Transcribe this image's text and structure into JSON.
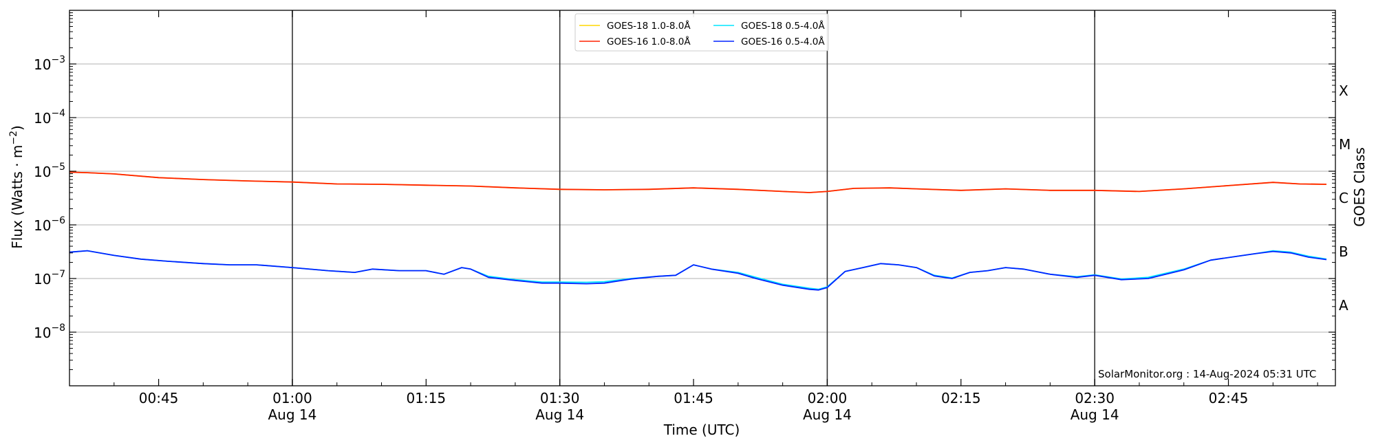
{
  "chart_data": {
    "type": "line",
    "title": "",
    "xlabel": "Time (UTC)",
    "ylabel": "Flux (Watts · m",
    "ylabel_sup": "−2",
    "ylabel_close": ")",
    "right_axis_label": "GOES Class",
    "y_scale": "log",
    "ylim": [
      1e-09,
      0.01
    ],
    "xlim": [
      "00:35",
      "02:57"
    ],
    "grid": "horizontal at major decades",
    "legend_position": "top-center",
    "y_ticks": [
      {
        "value": -8,
        "base": "10",
        "exp": "−8"
      },
      {
        "value": -7,
        "base": "10",
        "exp": "−7"
      },
      {
        "value": -6,
        "base": "10",
        "exp": "−6"
      },
      {
        "value": -5,
        "base": "10",
        "exp": "−5"
      },
      {
        "value": -4,
        "base": "10",
        "exp": "−4"
      },
      {
        "value": -3,
        "base": "10",
        "exp": "−3"
      }
    ],
    "x_ticks": [
      {
        "time": "00:45",
        "label": "00:45",
        "sub": ""
      },
      {
        "time": "01:00",
        "label": "01:00",
        "sub": "Aug 14"
      },
      {
        "time": "01:15",
        "label": "01:15",
        "sub": ""
      },
      {
        "time": "01:30",
        "label": "01:30",
        "sub": "Aug 14"
      },
      {
        "time": "01:45",
        "label": "01:45",
        "sub": ""
      },
      {
        "time": "02:00",
        "label": "02:00",
        "sub": "Aug 14"
      },
      {
        "time": "02:15",
        "label": "02:15",
        "sub": ""
      },
      {
        "time": "02:30",
        "label": "02:30",
        "sub": "Aug 14"
      },
      {
        "time": "02:45",
        "label": "02:45",
        "sub": ""
      }
    ],
    "vertical_lines": [
      "01:00",
      "01:30",
      "02:00",
      "02:30"
    ],
    "goes_classes": [
      {
        "label": "A",
        "log_flux": -7.5
      },
      {
        "label": "B",
        "log_flux": -6.5
      },
      {
        "label": "C",
        "log_flux": -5.5
      },
      {
        "label": "M",
        "log_flux": -4.5
      },
      {
        "label": "X",
        "log_flux": -3.5
      }
    ],
    "legend": [
      {
        "name": "GOES-18 1.0-8.0Å",
        "color": "#FFD700"
      },
      {
        "name": "GOES-18 0.5-4.0Å",
        "color": "#00E5FF"
      },
      {
        "name": "GOES-16 1.0-8.0Å",
        "color": "#FF2200"
      },
      {
        "name": "GOES-16 0.5-4.0Å",
        "color": "#0022FF"
      }
    ],
    "series": [
      {
        "name": "GOES-18 1.0-8.0Å",
        "color": "#FFD700",
        "x": [
          "00:35",
          "00:37",
          "00:40",
          "00:45",
          "00:50",
          "00:55",
          "01:00",
          "01:05",
          "01:10",
          "01:15",
          "01:20",
          "01:25",
          "01:30",
          "01:35",
          "01:40",
          "01:45",
          "01:50",
          "01:55",
          "01:58",
          "02:00",
          "02:03",
          "02:07",
          "02:10",
          "02:15",
          "02:20",
          "02:25",
          "02:30",
          "02:35",
          "02:40",
          "02:45",
          "02:50",
          "02:53",
          "02:56"
        ],
        "values": [
          9.6e-06,
          9.4e-06,
          8.9e-06,
          7.6e-06,
          7e-06,
          6.6e-06,
          6.3e-06,
          5.8e-06,
          5.7e-06,
          5.5e-06,
          5.3e-06,
          4.9e-06,
          4.6e-06,
          4.5e-06,
          4.6e-06,
          4.9e-06,
          4.6e-06,
          4.2e-06,
          4e-06,
          4.2e-06,
          4.8e-06,
          4.9e-06,
          4.7e-06,
          4.4e-06,
          4.7e-06,
          4.4e-06,
          4.4e-06,
          4.2e-06,
          4.7e-06,
          5.4e-06,
          6.2e-06,
          5.8e-06,
          5.7e-06
        ]
      },
      {
        "name": "GOES-16 1.0-8.0Å",
        "color": "#FF2200",
        "x": [
          "00:35",
          "00:37",
          "00:40",
          "00:45",
          "00:50",
          "00:55",
          "01:00",
          "01:05",
          "01:10",
          "01:15",
          "01:20",
          "01:25",
          "01:30",
          "01:35",
          "01:40",
          "01:45",
          "01:50",
          "01:55",
          "01:58",
          "02:00",
          "02:03",
          "02:07",
          "02:10",
          "02:15",
          "02:20",
          "02:25",
          "02:30",
          "02:35",
          "02:40",
          "02:45",
          "02:50",
          "02:53",
          "02:56"
        ],
        "values": [
          9.6e-06,
          9.4e-06,
          8.9e-06,
          7.6e-06,
          7e-06,
          6.6e-06,
          6.3e-06,
          5.8e-06,
          5.7e-06,
          5.5e-06,
          5.3e-06,
          4.9e-06,
          4.6e-06,
          4.5e-06,
          4.6e-06,
          4.9e-06,
          4.6e-06,
          4.2e-06,
          4e-06,
          4.2e-06,
          4.8e-06,
          4.9e-06,
          4.7e-06,
          4.4e-06,
          4.7e-06,
          4.4e-06,
          4.4e-06,
          4.2e-06,
          4.7e-06,
          5.4e-06,
          6.2e-06,
          5.8e-06,
          5.7e-06
        ]
      },
      {
        "name": "GOES-18 0.5-4.0Å",
        "color": "#00E5FF",
        "x": [
          "00:35",
          "00:37",
          "00:40",
          "00:43",
          "00:46",
          "00:50",
          "00:53",
          "00:56",
          "01:00",
          "01:04",
          "01:07",
          "01:09",
          "01:12",
          "01:15",
          "01:17",
          "01:19",
          "01:20",
          "01:22",
          "01:25",
          "01:28",
          "01:30",
          "01:33",
          "01:35",
          "01:38",
          "01:41",
          "01:43",
          "01:45",
          "01:47",
          "01:50",
          "01:52",
          "01:55",
          "01:58",
          "01:59",
          "02:00",
          "02:02",
          "02:04",
          "02:06",
          "02:08",
          "02:10",
          "02:12",
          "02:14",
          "02:16",
          "02:18",
          "02:20",
          "02:22",
          "02:25",
          "02:28",
          "02:30",
          "02:33",
          "02:36",
          "02:40",
          "02:43",
          "02:46",
          "02:48",
          "02:50",
          "02:52",
          "02:54",
          "02:56"
        ],
        "values": [
          3.1e-07,
          3.3e-07,
          2.7e-07,
          2.3e-07,
          2.1e-07,
          1.9e-07,
          1.8e-07,
          1.8e-07,
          1.6e-07,
          1.4e-07,
          1.3e-07,
          1.5e-07,
          1.4e-07,
          1.4e-07,
          1.2e-07,
          1.6e-07,
          1.5e-07,
          1.1e-07,
          9.5e-08,
          8.6e-08,
          8.6e-08,
          8.5e-08,
          8.7e-08,
          1e-07,
          1.1e-07,
          1.15e-07,
          1.8e-07,
          1.5e-07,
          1.3e-07,
          1.05e-07,
          7.8e-08,
          6.6e-08,
          6.3e-08,
          7e-08,
          1.35e-07,
          1.6e-07,
          1.9e-07,
          1.8e-07,
          1.6e-07,
          1.15e-07,
          1.02e-07,
          1.3e-07,
          1.4e-07,
          1.6e-07,
          1.5e-07,
          1.2e-07,
          1.08e-07,
          1.17e-07,
          9.8e-08,
          1.05e-07,
          1.5e-07,
          2.2e-07,
          2.6e-07,
          2.9e-07,
          3.3e-07,
          3.1e-07,
          2.6e-07,
          2.3e-07
        ]
      },
      {
        "name": "GOES-16 0.5-4.0Å",
        "color": "#0022FF",
        "x": [
          "00:35",
          "00:37",
          "00:40",
          "00:43",
          "00:46",
          "00:50",
          "00:53",
          "00:56",
          "01:00",
          "01:04",
          "01:07",
          "01:09",
          "01:12",
          "01:15",
          "01:17",
          "01:19",
          "01:20",
          "01:22",
          "01:25",
          "01:28",
          "01:30",
          "01:33",
          "01:35",
          "01:38",
          "01:41",
          "01:43",
          "01:45",
          "01:47",
          "01:50",
          "01:52",
          "01:55",
          "01:58",
          "01:59",
          "02:00",
          "02:02",
          "02:04",
          "02:06",
          "02:08",
          "02:10",
          "02:12",
          "02:14",
          "02:16",
          "02:18",
          "02:20",
          "02:22",
          "02:25",
          "02:28",
          "02:30",
          "02:33",
          "02:36",
          "02:40",
          "02:43",
          "02:46",
          "02:48",
          "02:50",
          "02:52",
          "02:54",
          "02:56"
        ],
        "values": [
          3.1e-07,
          3.3e-07,
          2.7e-07,
          2.3e-07,
          2.1e-07,
          1.9e-07,
          1.8e-07,
          1.8e-07,
          1.6e-07,
          1.4e-07,
          1.3e-07,
          1.5e-07,
          1.4e-07,
          1.4e-07,
          1.2e-07,
          1.6e-07,
          1.5e-07,
          1.05e-07,
          9.2e-08,
          8.2e-08,
          8.2e-08,
          8e-08,
          8.2e-08,
          9.8e-08,
          1.1e-07,
          1.15e-07,
          1.8e-07,
          1.5e-07,
          1.25e-07,
          1e-07,
          7.5e-08,
          6.3e-08,
          6.1e-08,
          6.8e-08,
          1.35e-07,
          1.6e-07,
          1.9e-07,
          1.8e-07,
          1.6e-07,
          1.12e-07,
          1e-07,
          1.3e-07,
          1.4e-07,
          1.6e-07,
          1.5e-07,
          1.2e-07,
          1.05e-07,
          1.15e-07,
          9.5e-08,
          1e-07,
          1.45e-07,
          2.2e-07,
          2.6e-07,
          2.9e-07,
          3.2e-07,
          3e-07,
          2.5e-07,
          2.25e-07
        ]
      }
    ],
    "credit": "SolarMonitor.org : 14-Aug-2024 05:31 UTC"
  }
}
